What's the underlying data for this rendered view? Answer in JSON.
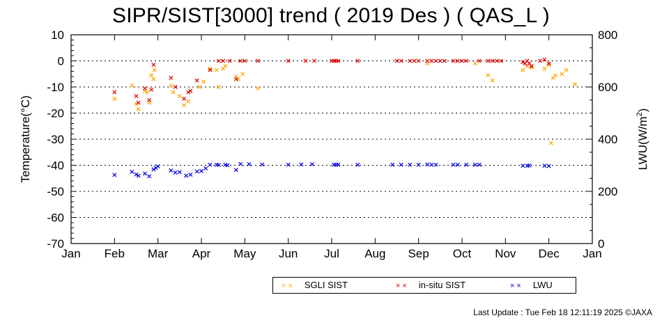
{
  "chart_data": {
    "type": "scatter",
    "title": "SIPR/SIST[3000] trend ( 2019 Des ) ( QAS_L )",
    "xlabel": "",
    "ylabel": "Temperature(°C)",
    "y2label": "LWU(W/m²)",
    "ylim": [
      -70,
      10
    ],
    "y2lim": [
      0,
      800
    ],
    "yticks": [
      "10",
      "0",
      "-10",
      "-20",
      "-30",
      "-40",
      "-50",
      "-60",
      "-70"
    ],
    "y2ticks": [
      "800",
      "600",
      "400",
      "200",
      "0"
    ],
    "xticks": [
      "Jan",
      "Feb",
      "Mar",
      "Apr",
      "May",
      "Jun",
      "Jul",
      "Aug",
      "Sep",
      "Oct",
      "Nov",
      "Dec",
      "Jan"
    ],
    "grid": "horizontal dotted",
    "legend_position": "bottom",
    "series": [
      {
        "name": "SGLI SIST",
        "color": "#ffa500",
        "axis": "left",
        "points": [
          [
            1.0,
            -14.5
          ],
          [
            1.4,
            -9.5
          ],
          [
            1.5,
            -16.5
          ],
          [
            1.55,
            -18.5
          ],
          [
            1.7,
            -11.5
          ],
          [
            1.75,
            -12
          ],
          [
            1.8,
            -16
          ],
          [
            1.85,
            -5.5
          ],
          [
            1.9,
            -7
          ],
          [
            1.92,
            -3.5
          ],
          [
            2.3,
            -9.5
          ],
          [
            2.35,
            -12
          ],
          [
            2.5,
            -13.5
          ],
          [
            2.6,
            -17
          ],
          [
            2.7,
            -15.5
          ],
          [
            2.95,
            -10
          ],
          [
            3.05,
            -8
          ],
          [
            3.2,
            -3
          ],
          [
            3.35,
            -3.5
          ],
          [
            3.4,
            -10
          ],
          [
            3.5,
            -3
          ],
          [
            3.55,
            -2
          ],
          [
            3.8,
            -6
          ],
          [
            3.85,
            -7
          ],
          [
            3.95,
            -5
          ],
          [
            4.3,
            -10.5
          ],
          [
            8.2,
            -1
          ],
          [
            9.3,
            -1
          ],
          [
            9.6,
            -5.5
          ],
          [
            9.7,
            -7.5
          ],
          [
            10.4,
            -3.5
          ],
          [
            10.5,
            -2
          ],
          [
            10.6,
            -2.5
          ],
          [
            10.9,
            -3
          ],
          [
            11.0,
            -1.5
          ],
          [
            11.05,
            -31.5
          ],
          [
            11.1,
            -6.5
          ],
          [
            11.15,
            -5.5
          ],
          [
            11.3,
            -5
          ],
          [
            11.4,
            -3.5
          ],
          [
            11.6,
            -9
          ]
        ]
      },
      {
        "name": "in-situ SIST",
        "color": "#e00000",
        "axis": "left",
        "points": [
          [
            1.0,
            -12
          ],
          [
            1.5,
            -13.5
          ],
          [
            1.55,
            -16
          ],
          [
            1.7,
            -10.5
          ],
          [
            1.8,
            -15
          ],
          [
            1.85,
            -11
          ],
          [
            1.9,
            -1.5
          ],
          [
            2.3,
            -6.5
          ],
          [
            2.4,
            -10
          ],
          [
            2.6,
            -14.5
          ],
          [
            2.7,
            -12
          ],
          [
            2.75,
            -11.5
          ],
          [
            2.9,
            -7.5
          ],
          [
            3.2,
            -3.5
          ],
          [
            3.4,
            0
          ],
          [
            3.5,
            0
          ],
          [
            3.65,
            0
          ],
          [
            3.8,
            -7
          ],
          [
            3.9,
            0
          ],
          [
            4.0,
            0
          ],
          [
            4.3,
            0
          ],
          [
            5.0,
            0
          ],
          [
            5.4,
            0
          ],
          [
            5.6,
            0
          ],
          [
            6.0,
            0
          ],
          [
            6.05,
            0
          ],
          [
            6.1,
            0
          ],
          [
            6.15,
            0
          ],
          [
            6.6,
            0
          ],
          [
            7.5,
            0
          ],
          [
            7.6,
            0
          ],
          [
            7.8,
            0
          ],
          [
            7.9,
            0
          ],
          [
            8.0,
            0
          ],
          [
            8.2,
            0
          ],
          [
            8.3,
            0
          ],
          [
            8.4,
            0
          ],
          [
            8.5,
            0
          ],
          [
            8.6,
            0
          ],
          [
            8.8,
            0
          ],
          [
            8.9,
            0
          ],
          [
            9.0,
            0
          ],
          [
            9.1,
            0
          ],
          [
            9.4,
            0
          ],
          [
            9.6,
            0
          ],
          [
            9.7,
            0
          ],
          [
            9.8,
            0
          ],
          [
            9.9,
            0
          ],
          [
            10.4,
            -0.5
          ],
          [
            10.45,
            -1
          ],
          [
            10.5,
            0
          ],
          [
            10.55,
            -1
          ],
          [
            10.6,
            -2
          ],
          [
            10.8,
            0
          ],
          [
            10.9,
            0.5
          ],
          [
            11.0,
            -1
          ]
        ]
      },
      {
        "name": "LWU",
        "color": "#0000e0",
        "axis": "right",
        "points": [
          [
            1.0,
            263
          ],
          [
            1.4,
            275
          ],
          [
            1.5,
            265
          ],
          [
            1.55,
            260
          ],
          [
            1.7,
            268
          ],
          [
            1.8,
            258
          ],
          [
            1.9,
            284
          ],
          [
            1.95,
            290
          ],
          [
            2.0,
            296
          ],
          [
            2.3,
            280
          ],
          [
            2.4,
            272
          ],
          [
            2.5,
            274
          ],
          [
            2.65,
            260
          ],
          [
            2.75,
            264
          ],
          [
            2.9,
            276
          ],
          [
            3.0,
            278
          ],
          [
            3.1,
            288
          ],
          [
            3.2,
            302
          ],
          [
            3.35,
            302
          ],
          [
            3.4,
            301
          ],
          [
            3.55,
            302
          ],
          [
            3.6,
            300
          ],
          [
            3.8,
            282
          ],
          [
            3.9,
            305
          ],
          [
            4.1,
            304
          ],
          [
            4.4,
            303
          ],
          [
            5.0,
            302
          ],
          [
            5.3,
            303
          ],
          [
            5.55,
            304
          ],
          [
            6.05,
            302
          ],
          [
            6.1,
            302
          ],
          [
            6.15,
            302
          ],
          [
            6.6,
            302
          ],
          [
            7.4,
            302
          ],
          [
            7.6,
            302
          ],
          [
            7.8,
            302
          ],
          [
            8.0,
            302
          ],
          [
            8.2,
            303
          ],
          [
            8.3,
            302
          ],
          [
            8.4,
            302
          ],
          [
            8.8,
            302
          ],
          [
            8.9,
            302
          ],
          [
            9.1,
            302
          ],
          [
            9.3,
            302
          ],
          [
            9.4,
            302
          ],
          [
            10.4,
            298
          ],
          [
            10.5,
            298
          ],
          [
            10.55,
            299
          ],
          [
            10.9,
            298
          ],
          [
            11.0,
            297
          ]
        ]
      }
    ],
    "footer": "Last Update : Tue Feb 18 12:11:19 2025 ©JAXA"
  }
}
